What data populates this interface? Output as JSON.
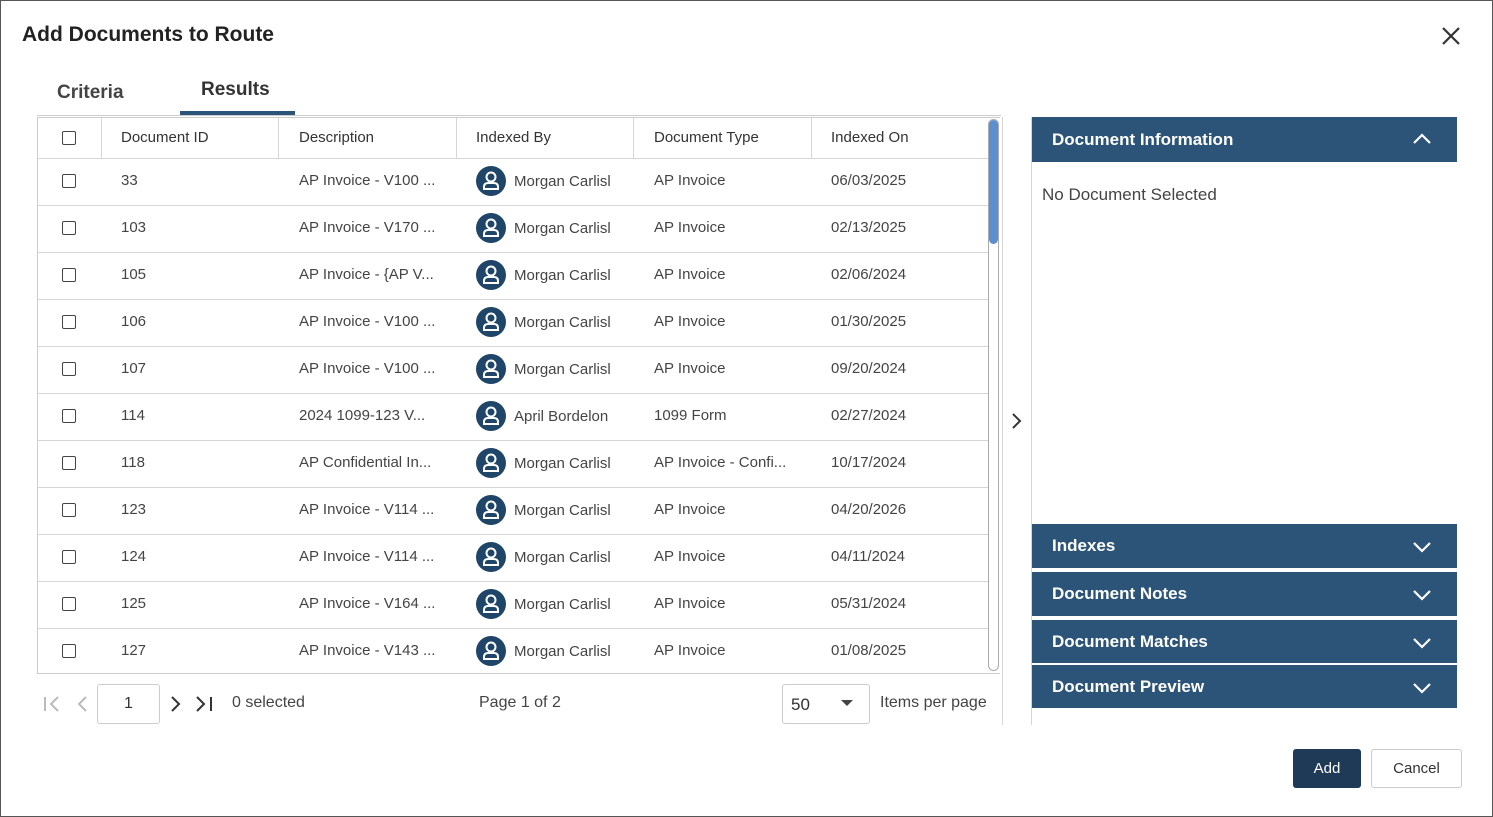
{
  "dialog": {
    "title": "Add Documents to Route"
  },
  "tabs": [
    "Criteria",
    "Results"
  ],
  "table": {
    "columns": [
      "Document ID",
      "Description",
      "Indexed By",
      "Document Type",
      "Indexed On"
    ],
    "rows": [
      [
        "33",
        "AP Invoice - V100 ...",
        "Morgan Carlisl",
        "AP Invoice",
        "06/03/2025"
      ],
      [
        "103",
        "AP Invoice - V170 ...",
        "Morgan Carlisl",
        "AP Invoice",
        "02/13/2025"
      ],
      [
        "105",
        "AP Invoice - {AP V...",
        "Morgan Carlisl",
        "AP Invoice",
        "02/06/2024"
      ],
      [
        "106",
        "AP Invoice - V100 ...",
        "Morgan Carlisl",
        "AP Invoice",
        "01/30/2025"
      ],
      [
        "107",
        "AP Invoice - V100 ...",
        "Morgan Carlisl",
        "AP Invoice",
        "09/20/2024"
      ],
      [
        "114",
        "2024 1099-123 V...",
        "April Bordelon",
        "1099 Form",
        "02/27/2024"
      ],
      [
        "118",
        "AP Confidential In...",
        "Morgan Carlisl",
        "AP Invoice - Confi...",
        "10/17/2024"
      ],
      [
        "123",
        "AP Invoice - V114 ...",
        "Morgan Carlisl",
        "AP Invoice",
        "04/20/2026"
      ],
      [
        "124",
        "AP Invoice - V114 ...",
        "Morgan Carlisl",
        "AP Invoice",
        "04/11/2024"
      ],
      [
        "125",
        "AP Invoice - V164 ...",
        "Morgan Carlisl",
        "AP Invoice",
        "05/31/2024"
      ],
      [
        "127",
        "AP Invoice - V143 ...",
        "Morgan Carlisl",
        "AP Invoice",
        "01/08/2025"
      ]
    ]
  },
  "pager": {
    "page_input": "1",
    "selected": "0 selected",
    "page": "Page 1 of 2",
    "per_page": "50",
    "per_page_label": "Items per page"
  },
  "side": {
    "header": "Document Information",
    "empty": "No Document Selected",
    "sections": [
      "Indexes",
      "Document Notes",
      "Document Matches",
      "Document Preview"
    ]
  },
  "buttons": {
    "add": "Add",
    "cancel": "Cancel"
  }
}
